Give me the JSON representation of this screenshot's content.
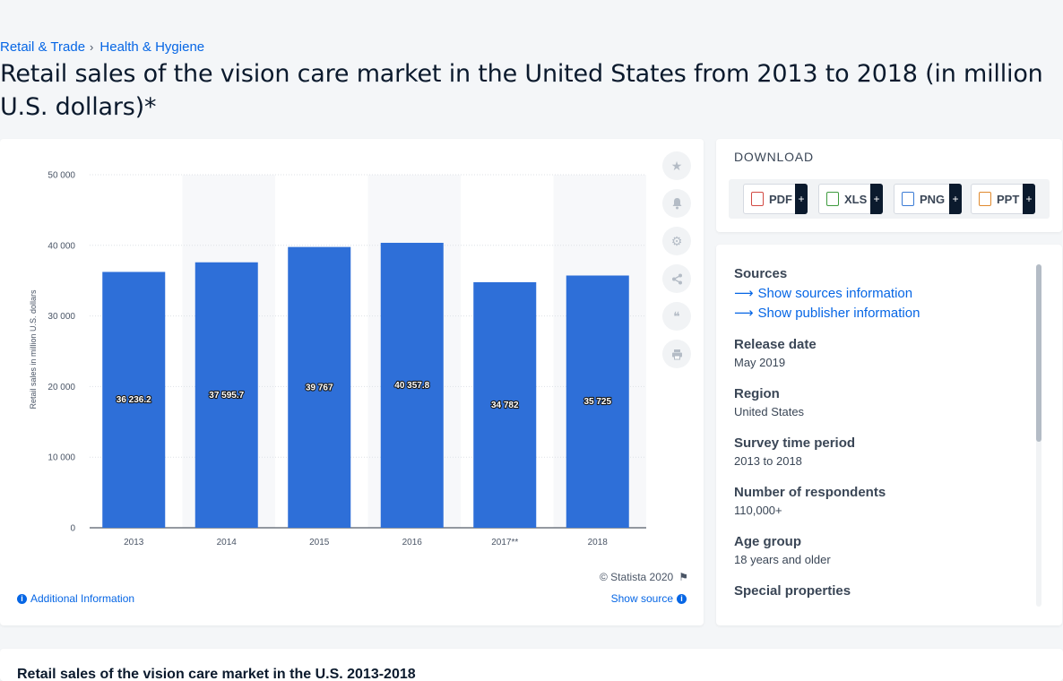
{
  "breadcrumb": {
    "items": [
      "Retail & Trade",
      "Health & Hygiene"
    ]
  },
  "page_title": "Retail sales of the vision care market in the United States from 2013 to 2018 (in million U.S. dollars)*",
  "chart_data": {
    "type": "bar",
    "categories": [
      "2013",
      "2014",
      "2015",
      "2016",
      "2017**",
      "2018"
    ],
    "values": [
      36236.2,
      37595.7,
      39767,
      40357.8,
      34782,
      35725
    ],
    "value_labels": [
      "36 236.2",
      "37 595.7",
      "39 767",
      "40 357.8",
      "34 782",
      "35 725"
    ],
    "ylabel": "Retail sales in million U.S. dollars",
    "ylim": [
      0,
      50000
    ],
    "yticks": [
      0,
      10000,
      20000,
      30000,
      40000,
      50000
    ],
    "ytick_labels": [
      "0",
      "10 000",
      "20 000",
      "30 000",
      "40 000",
      "50 000"
    ],
    "grid": true,
    "bar_color": "#2e6fd8"
  },
  "chart_footer": {
    "copyright": "© Statista 2020",
    "additional_info": "Additional Information",
    "show_source": "Show source"
  },
  "tools": [
    "star-icon",
    "bell-icon",
    "gear-icon",
    "share-icon",
    "quote-icon",
    "print-icon"
  ],
  "download": {
    "title": "DOWNLOAD",
    "buttons": [
      {
        "label": "PDF",
        "plus": "+"
      },
      {
        "label": "XLS",
        "plus": "+"
      },
      {
        "label": "PNG",
        "plus": "+"
      },
      {
        "label": "PPT",
        "plus": "+"
      }
    ]
  },
  "info": {
    "sources_heading": "Sources",
    "show_sources": "Show sources information",
    "show_publisher": "Show publisher information",
    "fields": [
      {
        "heading": "Release date",
        "value": "May 2019"
      },
      {
        "heading": "Region",
        "value": "United States"
      },
      {
        "heading": "Survey time period",
        "value": "2013 to 2018"
      },
      {
        "heading": "Number of respondents",
        "value": "110,000+"
      },
      {
        "heading": "Age group",
        "value": "18 years and older"
      },
      {
        "heading": "Special properties",
        "value": ""
      }
    ]
  },
  "bottom_title": "Retail sales of the vision care market in the U.S. 2013-2018"
}
